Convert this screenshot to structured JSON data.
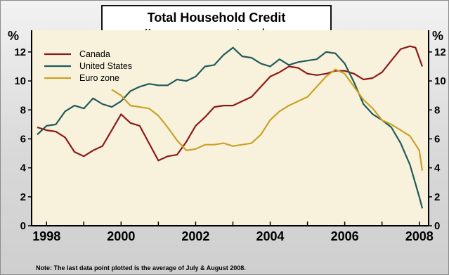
{
  "chart_data": {
    "type": "line",
    "title": "Total Household Credit",
    "subtitle": "Year-over year percentage change",
    "ylabel_left": "%",
    "ylabel_right": "%",
    "xlim": [
      1997.6,
      2008.25
    ],
    "ylim": [
      0,
      13.5
    ],
    "yticks": [
      0,
      2,
      4,
      6,
      8,
      10,
      12
    ],
    "xticks": [
      1998,
      2000,
      2002,
      2004,
      2006,
      2008
    ],
    "grid": false,
    "legend_position": "top-left",
    "note": "Note: The last data point plotted is the average of July & August 2008.",
    "series": [
      {
        "name": "Canada",
        "color": "#8b1a1a",
        "points": [
          [
            1997.75,
            6.8
          ],
          [
            1998.0,
            6.6
          ],
          [
            1998.25,
            6.5
          ],
          [
            1998.5,
            6.1
          ],
          [
            1998.75,
            5.1
          ],
          [
            1999.0,
            4.8
          ],
          [
            1999.25,
            5.2
          ],
          [
            1999.5,
            5.5
          ],
          [
            1999.75,
            6.6
          ],
          [
            2000.0,
            7.7
          ],
          [
            2000.25,
            7.1
          ],
          [
            2000.5,
            6.9
          ],
          [
            2000.75,
            5.7
          ],
          [
            2001.0,
            4.5
          ],
          [
            2001.25,
            4.8
          ],
          [
            2001.5,
            4.9
          ],
          [
            2001.75,
            5.8
          ],
          [
            2002.0,
            6.9
          ],
          [
            2002.25,
            7.5
          ],
          [
            2002.5,
            8.2
          ],
          [
            2002.75,
            8.3
          ],
          [
            2003.0,
            8.3
          ],
          [
            2003.25,
            8.6
          ],
          [
            2003.5,
            8.9
          ],
          [
            2003.75,
            9.6
          ],
          [
            2004.0,
            10.3
          ],
          [
            2004.25,
            10.6
          ],
          [
            2004.5,
            11.0
          ],
          [
            2004.75,
            10.9
          ],
          [
            2005.0,
            10.5
          ],
          [
            2005.25,
            10.4
          ],
          [
            2005.5,
            10.5
          ],
          [
            2005.75,
            10.7
          ],
          [
            2006.0,
            10.7
          ],
          [
            2006.25,
            10.5
          ],
          [
            2006.5,
            10.1
          ],
          [
            2006.75,
            10.2
          ],
          [
            2007.0,
            10.6
          ],
          [
            2007.25,
            11.4
          ],
          [
            2007.5,
            12.2
          ],
          [
            2007.75,
            12.4
          ],
          [
            2007.9,
            12.3
          ],
          [
            2008.08,
            11.0
          ]
        ]
      },
      {
        "name": "United States",
        "color": "#1f5a5a",
        "points": [
          [
            1997.75,
            6.3
          ],
          [
            1998.0,
            6.9
          ],
          [
            1998.25,
            7.0
          ],
          [
            1998.5,
            7.9
          ],
          [
            1998.75,
            8.3
          ],
          [
            1999.0,
            8.1
          ],
          [
            1999.25,
            8.8
          ],
          [
            1999.5,
            8.4
          ],
          [
            1999.75,
            8.2
          ],
          [
            2000.0,
            8.6
          ],
          [
            2000.25,
            9.3
          ],
          [
            2000.5,
            9.6
          ],
          [
            2000.75,
            9.8
          ],
          [
            2001.0,
            9.7
          ],
          [
            2001.25,
            9.7
          ],
          [
            2001.5,
            10.1
          ],
          [
            2001.75,
            10.0
          ],
          [
            2002.0,
            10.3
          ],
          [
            2002.25,
            11.0
          ],
          [
            2002.5,
            11.1
          ],
          [
            2002.75,
            11.8
          ],
          [
            2003.0,
            12.3
          ],
          [
            2003.25,
            11.7
          ],
          [
            2003.5,
            11.6
          ],
          [
            2003.75,
            11.2
          ],
          [
            2004.0,
            11.0
          ],
          [
            2004.25,
            11.5
          ],
          [
            2004.5,
            11.1
          ],
          [
            2004.75,
            11.3
          ],
          [
            2005.0,
            11.4
          ],
          [
            2005.25,
            11.5
          ],
          [
            2005.5,
            12.0
          ],
          [
            2005.75,
            11.9
          ],
          [
            2006.0,
            11.2
          ],
          [
            2006.25,
            9.9
          ],
          [
            2006.5,
            8.4
          ],
          [
            2006.75,
            7.7
          ],
          [
            2007.0,
            7.3
          ],
          [
            2007.25,
            6.8
          ],
          [
            2007.5,
            5.7
          ],
          [
            2007.75,
            4.2
          ],
          [
            2008.0,
            2.0
          ],
          [
            2008.08,
            1.2
          ]
        ]
      },
      {
        "name": "Euro zone",
        "color": "#c9a227",
        "points": [
          [
            1999.75,
            9.4
          ],
          [
            2000.0,
            9.0
          ],
          [
            2000.25,
            8.3
          ],
          [
            2000.5,
            8.2
          ],
          [
            2000.75,
            8.1
          ],
          [
            2001.0,
            7.6
          ],
          [
            2001.25,
            6.8
          ],
          [
            2001.5,
            5.9
          ],
          [
            2001.75,
            5.2
          ],
          [
            2002.0,
            5.3
          ],
          [
            2002.25,
            5.6
          ],
          [
            2002.5,
            5.6
          ],
          [
            2002.75,
            5.7
          ],
          [
            2003.0,
            5.5
          ],
          [
            2003.25,
            5.6
          ],
          [
            2003.5,
            5.7
          ],
          [
            2003.75,
            6.3
          ],
          [
            2004.0,
            7.3
          ],
          [
            2004.25,
            7.9
          ],
          [
            2004.5,
            8.3
          ],
          [
            2004.75,
            8.6
          ],
          [
            2005.0,
            8.9
          ],
          [
            2005.25,
            9.6
          ],
          [
            2005.5,
            10.3
          ],
          [
            2005.75,
            10.8
          ],
          [
            2006.0,
            10.5
          ],
          [
            2006.25,
            9.6
          ],
          [
            2006.5,
            8.7
          ],
          [
            2006.75,
            8.1
          ],
          [
            2007.0,
            7.3
          ],
          [
            2007.25,
            7.0
          ],
          [
            2007.5,
            6.6
          ],
          [
            2007.75,
            6.2
          ],
          [
            2008.0,
            5.2
          ],
          [
            2008.08,
            3.8
          ]
        ]
      }
    ]
  }
}
